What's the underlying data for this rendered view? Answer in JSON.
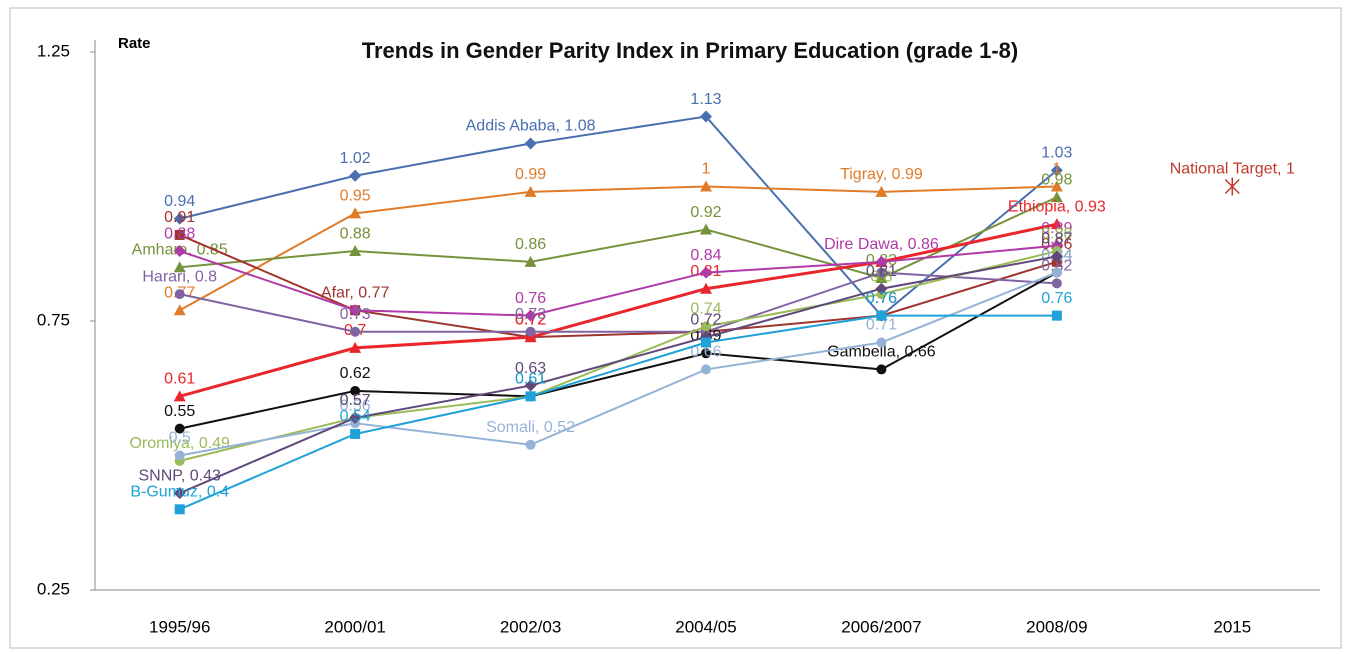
{
  "chart_data": {
    "type": "line",
    "title": "Trends in Gender Parity Index in Primary Education (grade 1-8)",
    "y_label": "Rate",
    "categories": [
      "1995/96",
      "2000/01",
      "2002/03",
      "2004/05",
      "2006/2007",
      "2008/09",
      "2015"
    ],
    "ylim": [
      0.25,
      1.25
    ],
    "yticks": [
      0.25,
      0.75,
      1.25
    ],
    "grid": false,
    "series": [
      {
        "name": "Addis Ababa",
        "color": "#4a6fb0",
        "marker": "diamond",
        "values": [
          0.94,
          1.02,
          1.08,
          1.13,
          0.76,
          1.03,
          null
        ],
        "value_labels": [
          "0.94",
          "1.02",
          "Addis Ababa, 1.08",
          "1.13",
          null,
          "1.03",
          null
        ]
      },
      {
        "name": "Tigray",
        "color": "#e07b2a",
        "marker": "triangle",
        "values": [
          0.77,
          0.95,
          0.99,
          1,
          0.99,
          1,
          null
        ],
        "value_labels": [
          "0.77",
          "0.95",
          "0.99",
          "1",
          "Tigray, 0.99",
          "1",
          null
        ]
      },
      {
        "name": "Amhara",
        "color": "#76923c",
        "marker": "triangle",
        "values": [
          0.85,
          0.88,
          0.86,
          0.92,
          0.83,
          0.98,
          null
        ],
        "value_labels": [
          "Amhara, 0.85",
          "0.88",
          "0.86",
          "0.92",
          "0.83",
          "0.98",
          null
        ]
      },
      {
        "name": "Afar",
        "color": "#a0342f",
        "marker": "square",
        "values": [
          0.91,
          0.77,
          0.72,
          0.73,
          0.76,
          0.86,
          null
        ],
        "value_labels": [
          "0.91",
          "Afar, 0.77",
          "0.72",
          null,
          "0.76",
          "0.86",
          null
        ]
      },
      {
        "name": "Ethiopia",
        "color": "#e8262b",
        "marker": "triangle",
        "values": [
          0.61,
          0.7,
          0.72,
          0.81,
          0.86,
          0.93,
          null
        ],
        "value_labels": [
          "0.61",
          "0.7",
          "0.72",
          "0.81",
          null,
          "Ethiopia, 0.93",
          null
        ]
      },
      {
        "name": "Dire Dawa",
        "color": "#b03aa8",
        "marker": "diamond",
        "values": [
          0.88,
          0.77,
          0.76,
          0.84,
          0.86,
          0.89,
          null
        ],
        "value_labels": [
          "0.88",
          null,
          "0.76",
          "0.84",
          "Dire Dawa, 0.86",
          "0.89",
          null
        ]
      },
      {
        "name": "Harari",
        "color": "#8064a2",
        "marker": "circle",
        "values": [
          0.8,
          0.73,
          0.73,
          0.73,
          0.84,
          0.82,
          null
        ],
        "value_labels": [
          "Harari, 0.8",
          "0.73",
          "0.73",
          null,
          null,
          "0.82",
          null
        ]
      },
      {
        "name": "Gambella",
        "color": "#111111",
        "marker": "circle",
        "values": [
          0.55,
          0.62,
          0.61,
          0.69,
          0.66,
          0.84,
          null
        ],
        "value_labels": [
          "0.55",
          "0.62",
          null,
          "0.69",
          "Gambella, 0.66",
          "0.84",
          null
        ]
      },
      {
        "name": "Oromiya",
        "color": "#9bbb59",
        "marker": "circle",
        "values": [
          0.49,
          0.57,
          0.61,
          0.74,
          0.8,
          0.88,
          null
        ],
        "value_labels": [
          "Oromiya, 0.49",
          "0.57",
          "0.61",
          "0.74",
          "0.8",
          "0.88",
          null
        ]
      },
      {
        "name": "Somali",
        "color": "#95b3d7",
        "marker": "circle",
        "values": [
          0.5,
          0.56,
          0.52,
          0.66,
          0.71,
          0.84,
          null
        ],
        "value_labels": [
          "0.5",
          "0.56",
          "Somali, 0.52",
          "0.66",
          "0.71",
          "0.84",
          null
        ]
      },
      {
        "name": "SNNP",
        "color": "#60497a",
        "marker": "diamond",
        "values": [
          0.43,
          0.57,
          0.63,
          0.72,
          0.81,
          0.87,
          null
        ],
        "value_labels": [
          "SNNP, 0.43",
          "0.57",
          "0.63",
          "0.72",
          "0.81",
          "0.87",
          null
        ]
      },
      {
        "name": "B-Gumuz",
        "color": "#1fa2d8",
        "marker": "square",
        "values": [
          0.4,
          0.54,
          0.61,
          0.71,
          0.76,
          0.76,
          null
        ],
        "value_labels": [
          "B-Gumuz, 0.4",
          "0.54",
          "0.61",
          null,
          "0.76",
          "0.76",
          null
        ]
      },
      {
        "name": "National Target",
        "color": "#c0392b",
        "marker": "star",
        "values": [
          null,
          null,
          null,
          null,
          null,
          null,
          1
        ],
        "value_labels": [
          null,
          null,
          null,
          null,
          null,
          null,
          "National Target, 1"
        ]
      }
    ]
  }
}
